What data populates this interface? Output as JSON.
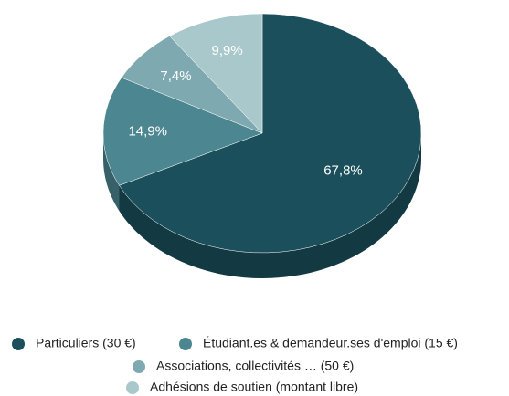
{
  "chart_data": {
    "type": "pie",
    "categories": [
      "Particuliers (30 €)",
      "Étudiant.es & demandeur.ses d'emploi (15 €)",
      "Associations, collectivités … (50 €)",
      "Adhésions de soutien (montant libre)"
    ],
    "values": [
      67.8,
      14.9,
      7.4,
      9.9
    ],
    "value_labels": [
      "67,8%",
      "14,9%",
      "7,4%",
      "9,9%"
    ],
    "colors": [
      "#1b4f5c",
      "#4c8690",
      "#7ea9b0",
      "#a9c8cc"
    ],
    "three_d": true
  }
}
